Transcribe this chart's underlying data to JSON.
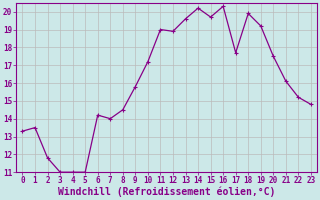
{
  "x": [
    0,
    1,
    2,
    3,
    4,
    5,
    6,
    7,
    8,
    9,
    10,
    11,
    12,
    13,
    14,
    15,
    16,
    17,
    18,
    19,
    20,
    21,
    22,
    23
  ],
  "y": [
    13.3,
    13.5,
    11.8,
    11.0,
    11.0,
    11.0,
    14.2,
    14.0,
    14.5,
    15.8,
    17.2,
    19.0,
    18.9,
    19.6,
    20.2,
    19.7,
    20.3,
    17.7,
    19.9,
    19.2,
    17.5,
    16.1,
    15.2,
    14.8
  ],
  "line_color": "#880088",
  "marker": "+",
  "marker_size": 3,
  "bg_color": "#cce8e8",
  "grid_color": "#bbbbbb",
  "xlabel": "Windchill (Refroidissement éolien,°C)",
  "ylim": [
    11,
    20.5
  ],
  "yticks": [
    11,
    12,
    13,
    14,
    15,
    16,
    17,
    18,
    19,
    20
  ],
  "xlim": [
    -0.5,
    23.5
  ],
  "xticks": [
    0,
    1,
    2,
    3,
    4,
    5,
    6,
    7,
    8,
    9,
    10,
    11,
    12,
    13,
    14,
    15,
    16,
    17,
    18,
    19,
    20,
    21,
    22,
    23
  ],
  "tick_fontsize": 5.5,
  "xlabel_fontsize": 7,
  "marker_edge_width": 0.8,
  "line_width": 0.9
}
